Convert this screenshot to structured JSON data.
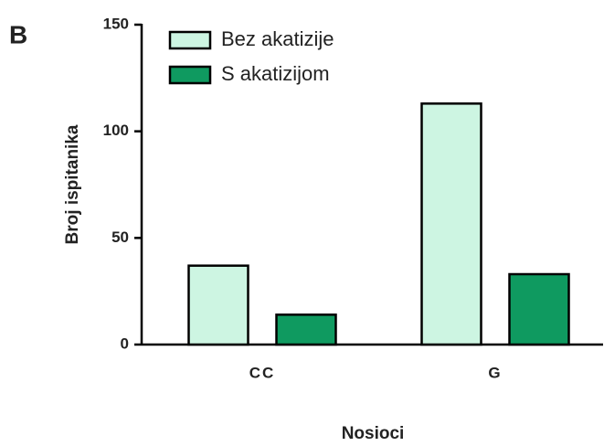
{
  "chart_data": {
    "type": "bar",
    "panel_label": "B",
    "y_label": "Broj ispitanika",
    "x_label": "Nosioci",
    "categories": [
      "CC",
      "G"
    ],
    "series": [
      {
        "name": "Bez akatizije",
        "color": "#cdf5e2",
        "values": [
          37,
          113
        ]
      },
      {
        "name": "S akatizijom",
        "color": "#0f9a60",
        "values": [
          14,
          33
        ]
      }
    ],
    "ylim": [
      0,
      150
    ],
    "yticks": [
      0,
      50,
      100,
      150
    ]
  }
}
